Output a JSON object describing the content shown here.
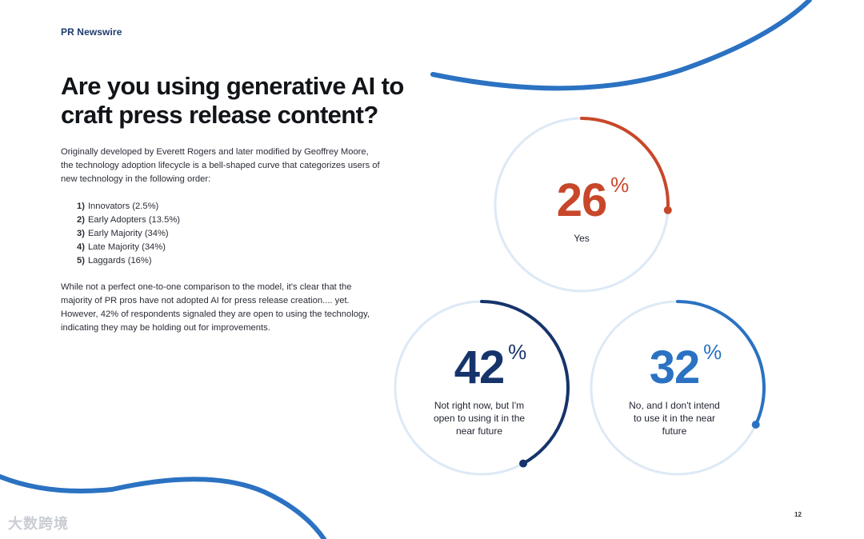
{
  "header": {
    "logo_text": "PR Newswire"
  },
  "title": "Are you using generative AI to craft press release content?",
  "intro": "Originally developed by Everett Rogers and later modified by Geoffrey Moore, the technology adoption lifecycle is a bell-shaped curve that categorizes users of new technology in the following order:",
  "lifecycle": [
    {
      "num": "1)",
      "label": "Innovators (2.5%)"
    },
    {
      "num": "2)",
      "label": "Early Adopters (13.5%)"
    },
    {
      "num": "3)",
      "label": "Early Majority (34%)"
    },
    {
      "num": "4)",
      "label": "Late Majority (34%)"
    },
    {
      "num": "5)",
      "label": "Laggards (16%)"
    }
  ],
  "outro": "While not a perfect one-to-one comparison to the model, it's clear that the majority of PR pros have not adopted AI for press release creation.... yet. However, 42% of respondents signaled they are open to using the technology, indicating they may be holding out for improvements.",
  "stats": [
    {
      "value": 26,
      "value_text": "26",
      "pct_sign": "%",
      "caption": "Yes",
      "color": "#c8472a"
    },
    {
      "value": 42,
      "value_text": "42",
      "pct_sign": "%",
      "caption": "Not right now, but I'm open to using it in the near future",
      "color": "#16346b"
    },
    {
      "value": 32,
      "value_text": "32",
      "pct_sign": "%",
      "caption": "No, and I don't intend to use it in the near future",
      "color": "#2b72c2"
    }
  ],
  "ring_track_color": "#dde9f6",
  "accent_blue": "#2b72c2",
  "watermark": "大数跨境",
  "page_number": "12"
}
